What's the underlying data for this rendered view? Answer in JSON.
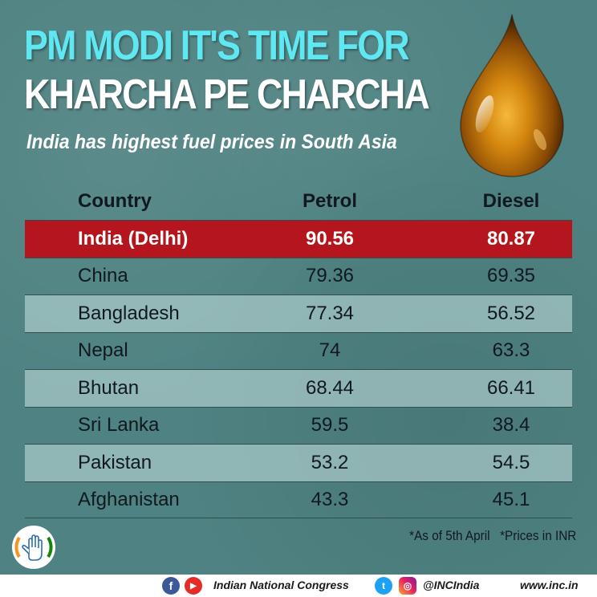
{
  "headline": {
    "line1": "PM MODI IT'S TIME FOR",
    "line2": "KHARCHA PE CHARCHA",
    "subtitle": "India has highest fuel prices in South Asia"
  },
  "table": {
    "headers": [
      "Country",
      "Petrol",
      "Diesel"
    ],
    "rows": [
      {
        "country": "India (Delhi)",
        "petrol": "90.56",
        "diesel": "80.87"
      },
      {
        "country": "China",
        "petrol": "79.36",
        "diesel": "69.35"
      },
      {
        "country": "Bangladesh",
        "petrol": "77.34",
        "diesel": "56.52"
      },
      {
        "country": "Nepal",
        "petrol": "74",
        "diesel": "63.3"
      },
      {
        "country": "Bhutan",
        "petrol": "68.44",
        "diesel": "66.41"
      },
      {
        "country": "Sri Lanka",
        "petrol": "59.5",
        "diesel": "38.4"
      },
      {
        "country": "Pakistan",
        "petrol": "53.2",
        "diesel": "54.5"
      },
      {
        "country": "Afghanistan",
        "petrol": "43.3",
        "diesel": "45.1"
      }
    ]
  },
  "notes": {
    "as_of": "*As of 5th April",
    "currency": "*Prices in INR"
  },
  "footer": {
    "organization": "Indian National Congress",
    "handle": "@INCIndia",
    "website": "www.inc.in",
    "icons": [
      "facebook-icon",
      "youtube-icon",
      "twitter-icon",
      "instagram-icon"
    ]
  },
  "colors": {
    "background": "#4f8282",
    "headline_accent": "#5fe8f2",
    "highlight_row": "#b5151c"
  }
}
